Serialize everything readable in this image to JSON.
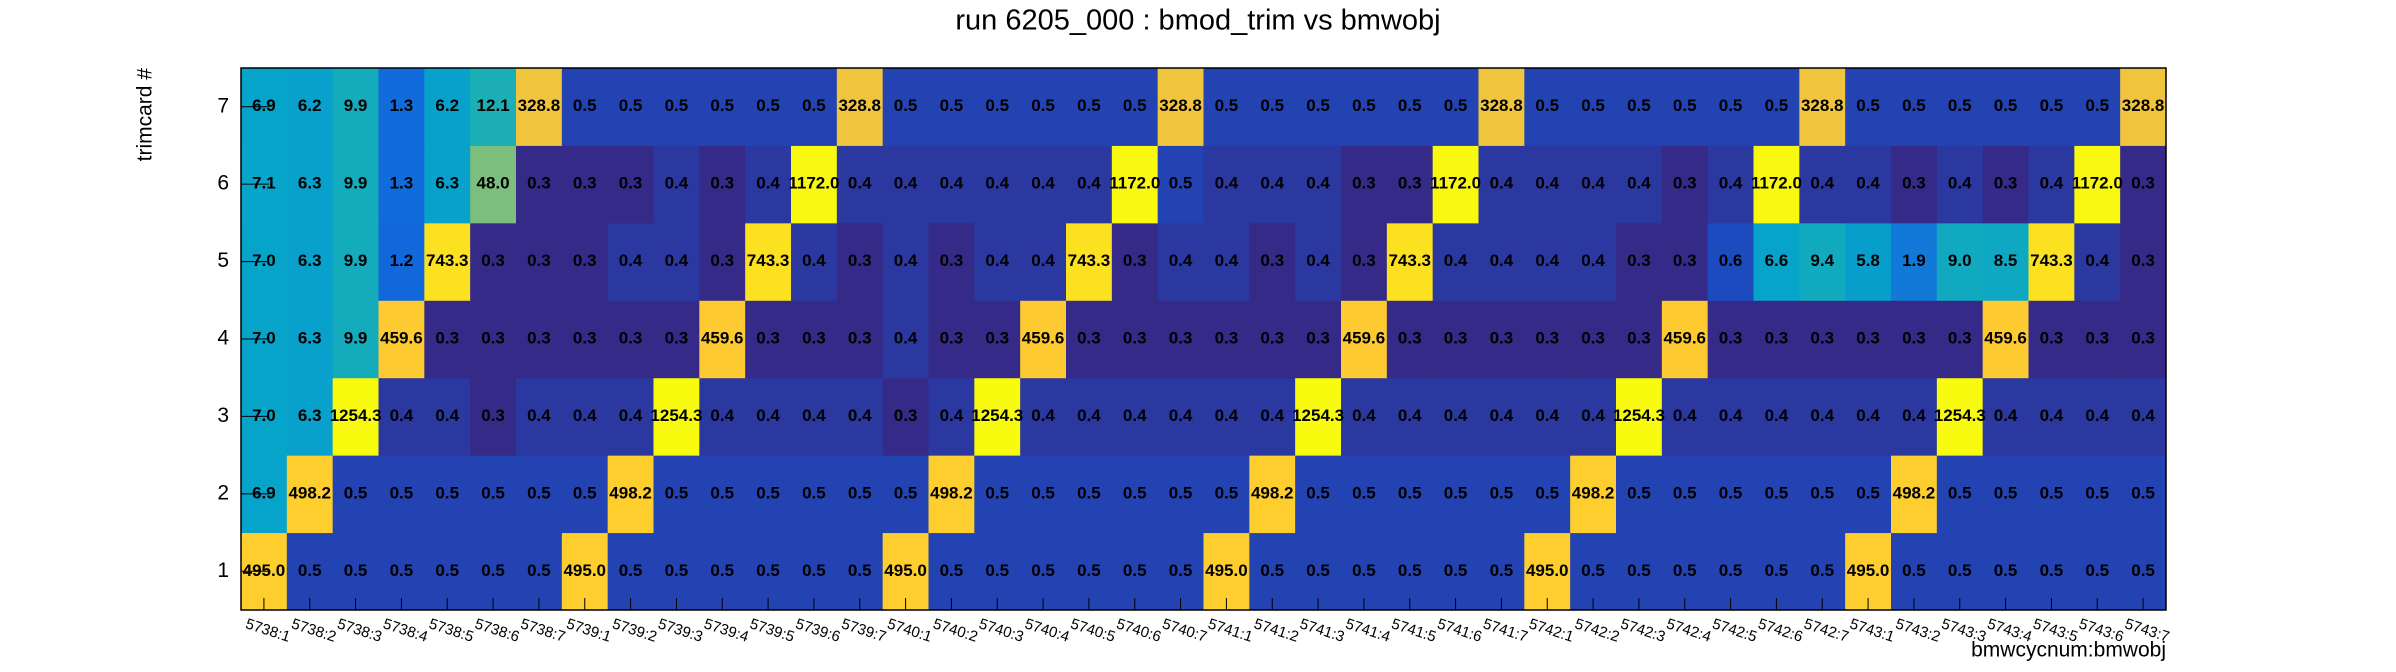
{
  "chart_data": {
    "type": "heatmap",
    "title": "run 6205_000 : bmod_trim vs bmwobj",
    "x_label": "bmwcycnum:bmwobj",
    "y_label": "trimcard #",
    "x": [
      "5738:1",
      "5738:2",
      "5738:3",
      "5738:4",
      "5738:5",
      "5738:6",
      "5738:7",
      "5739:1",
      "5739:2",
      "5739:3",
      "5739:4",
      "5739:5",
      "5739:6",
      "5739:7",
      "5740:1",
      "5740:2",
      "5740:3",
      "5740:4",
      "5740:5",
      "5740:6",
      "5740:7",
      "5741:1",
      "5741:2",
      "5741:3",
      "5741:4",
      "5741:5",
      "5741:6",
      "5741:7",
      "5742:1",
      "5742:2",
      "5742:3",
      "5742:4",
      "5742:5",
      "5742:6",
      "5742:7",
      "5743:1",
      "5743:2",
      "5743:3",
      "5743:4",
      "5743:5",
      "5743:6",
      "5743:7"
    ],
    "y": [
      1,
      2,
      3,
      4,
      5,
      6,
      7
    ],
    "log_z": true,
    "palette": [
      "#352a87",
      "#0f5cdd",
      "#1481d6",
      "#06a4ca",
      "#2eb7a4",
      "#87bf77",
      "#d1bb59",
      "#fec832",
      "#f9fb0e"
    ],
    "values": [
      [
        495.0,
        0.5,
        0.5,
        0.5,
        0.5,
        0.5,
        0.5,
        495.0,
        0.5,
        0.5,
        0.5,
        0.5,
        0.5,
        0.5,
        495.0,
        0.5,
        0.5,
        0.5,
        0.5,
        0.5,
        0.5,
        495.0,
        0.5,
        0.5,
        0.5,
        0.5,
        0.5,
        0.5,
        495.0,
        0.5,
        0.5,
        0.5,
        0.5,
        0.5,
        0.5,
        495.0,
        0.5,
        0.5,
        0.5,
        0.5,
        0.5,
        0.5
      ],
      [
        6.9,
        498.2,
        0.5,
        0.5,
        0.5,
        0.5,
        0.5,
        0.5,
        498.2,
        0.5,
        0.5,
        0.5,
        0.5,
        0.5,
        0.5,
        498.2,
        0.5,
        0.5,
        0.5,
        0.5,
        0.5,
        0.5,
        498.2,
        0.5,
        0.5,
        0.5,
        0.5,
        0.5,
        0.5,
        498.2,
        0.5,
        0.5,
        0.5,
        0.5,
        0.5,
        0.5,
        498.2,
        0.5,
        0.5,
        0.5,
        0.5,
        0.5
      ],
      [
        7.0,
        6.3,
        1254.3,
        0.4,
        0.4,
        0.3,
        0.4,
        0.4,
        0.4,
        1254.3,
        0.4,
        0.4,
        0.4,
        0.4,
        0.3,
        0.4,
        1254.3,
        0.4,
        0.4,
        0.4,
        0.4,
        0.4,
        0.4,
        1254.3,
        0.4,
        0.4,
        0.4,
        0.4,
        0.4,
        0.4,
        1254.3,
        0.4,
        0.4,
        0.4,
        0.4,
        0.4,
        0.4,
        1254.3,
        0.4,
        0.4,
        0.4,
        0.4
      ],
      [
        7.0,
        6.3,
        9.9,
        459.6,
        0.3,
        0.3,
        0.3,
        0.3,
        0.3,
        0.3,
        459.6,
        0.3,
        0.3,
        0.3,
        0.4,
        0.3,
        0.3,
        459.6,
        0.3,
        0.3,
        0.3,
        0.3,
        0.3,
        0.3,
        459.6,
        0.3,
        0.3,
        0.3,
        0.3,
        0.3,
        0.3,
        459.6,
        0.3,
        0.3,
        0.3,
        0.3,
        0.3,
        0.3,
        459.6,
        0.3,
        0.3,
        0.3
      ],
      [
        7.0,
        6.3,
        9.9,
        1.2,
        743.3,
        0.3,
        0.3,
        0.3,
        0.4,
        0.4,
        0.3,
        743.3,
        0.4,
        0.3,
        0.4,
        0.3,
        0.4,
        0.4,
        743.3,
        0.3,
        0.4,
        0.4,
        0.3,
        0.4,
        0.3,
        743.3,
        0.4,
        0.4,
        0.4,
        0.4,
        0.3,
        0.3,
        0.6,
        6.6,
        9.4,
        5.8,
        1.9,
        9.0,
        8.5,
        743.3,
        0.4,
        0.3
      ],
      [
        7.1,
        6.3,
        9.9,
        1.3,
        6.3,
        48.0,
        0.3,
        0.3,
        0.3,
        0.4,
        0.3,
        0.4,
        1172.0,
        0.4,
        0.4,
        0.4,
        0.4,
        0.4,
        0.4,
        1172.0,
        0.5,
        0.4,
        0.4,
        0.4,
        0.3,
        0.3,
        1172.0,
        0.4,
        0.4,
        0.4,
        0.4,
        0.3,
        0.4,
        1172.0,
        0.4,
        0.4,
        0.3,
        0.4,
        0.3,
        0.4,
        1172.0,
        0.3
      ],
      [
        6.9,
        6.2,
        9.9,
        1.3,
        6.2,
        12.1,
        328.8,
        0.5,
        0.5,
        0.5,
        0.5,
        0.5,
        0.5,
        328.8,
        0.5,
        0.5,
        0.5,
        0.5,
        0.5,
        0.5,
        328.8,
        0.5,
        0.5,
        0.5,
        0.5,
        0.5,
        0.5,
        328.8,
        0.5,
        0.5,
        0.5,
        0.5,
        0.5,
        0.5,
        328.8,
        0.5,
        0.5,
        0.5,
        0.5,
        0.5,
        0.5,
        328.8
      ]
    ],
    "value_labels": [
      [
        "495.0",
        "0.5",
        "0.5",
        "0.5",
        "0.5",
        "0.5",
        "0.5",
        "495.0",
        "0.5",
        "0.5",
        "0.5",
        "0.5",
        "0.5",
        "0.5",
        "495.0",
        "0.5",
        "0.5",
        "0.5",
        "0.5",
        "0.5",
        "0.5",
        "495.0",
        "0.5",
        "0.5",
        "0.5",
        "0.5",
        "0.5",
        "0.5",
        "495.0",
        "0.5",
        "0.5",
        "0.5",
        "0.5",
        "0.5",
        "0.5",
        "495.0",
        "0.5",
        "0.5",
        "0.5",
        "0.5",
        "0.5",
        "0.5"
      ],
      [
        "6.9",
        "498.2",
        "0.5",
        "0.5",
        "0.5",
        "0.5",
        "0.5",
        "0.5",
        "498.2",
        "0.5",
        "0.5",
        "0.5",
        "0.5",
        "0.5",
        "0.5",
        "498.2",
        "0.5",
        "0.5",
        "0.5",
        "0.5",
        "0.5",
        "0.5",
        "498.2",
        "0.5",
        "0.5",
        "0.5",
        "0.5",
        "0.5",
        "0.5",
        "498.2",
        "0.5",
        "0.5",
        "0.5",
        "0.5",
        "0.5",
        "0.5",
        "498.2",
        "0.5",
        "0.5",
        "0.5",
        "0.5",
        "0.5"
      ],
      [
        "7.0",
        "6.3",
        "1254.3",
        "0.4",
        "0.4",
        "0.3",
        "0.4",
        "0.4",
        "0.4",
        "1254.3",
        "0.4",
        "0.4",
        "0.4",
        "0.4",
        "0.3",
        "0.4",
        "1254.3",
        "0.4",
        "0.4",
        "0.4",
        "0.4",
        "0.4",
        "0.4",
        "1254.3",
        "0.4",
        "0.4",
        "0.4",
        "0.4",
        "0.4",
        "0.4",
        "1254.3",
        "0.4",
        "0.4",
        "0.4",
        "0.4",
        "0.4",
        "0.4",
        "1254.3",
        "0.4",
        "0.4",
        "0.4",
        "0.4"
      ],
      [
        "7.0",
        "6.3",
        "9.9",
        "459.6",
        "0.3",
        "0.3",
        "0.3",
        "0.3",
        "0.3",
        "0.3",
        "459.6",
        "0.3",
        "0.3",
        "0.3",
        "0.4",
        "0.3",
        "0.3",
        "459.6",
        "0.3",
        "0.3",
        "0.3",
        "0.3",
        "0.3",
        "0.3",
        "459.6",
        "0.3",
        "0.3",
        "0.3",
        "0.3",
        "0.3",
        "0.3",
        "459.6",
        "0.3",
        "0.3",
        "0.3",
        "0.3",
        "0.3",
        "0.3",
        "459.6",
        "0.3",
        "0.3",
        "0.3"
      ],
      [
        "7.0",
        "6.3",
        "9.9",
        "1.2",
        "743.3",
        "0.3",
        "0.3",
        "0.3",
        "0.4",
        "0.4",
        "0.3",
        "743.3",
        "0.4",
        "0.3",
        "0.4",
        "0.3",
        "0.4",
        "0.4",
        "743.3",
        "0.3",
        "0.4",
        "0.4",
        "0.3",
        "0.4",
        "0.3",
        "743.3",
        "0.4",
        "0.4",
        "0.4",
        "0.4",
        "0.3",
        "0.3",
        "0.6",
        "6.6",
        "9.4",
        "5.8",
        "1.9",
        "9.0",
        "8.5",
        "743.3",
        "0.4",
        "0.3"
      ],
      [
        "7.1",
        "6.3",
        "9.9",
        "1.3",
        "6.3",
        "48.0",
        "0.3",
        "0.3",
        "0.3",
        "0.4",
        "0.3",
        "0.4",
        "1172.0",
        "0.4",
        "0.4",
        "0.4",
        "0.4",
        "0.4",
        "0.4",
        "1172.0",
        "0.5",
        "0.4",
        "0.4",
        "0.4",
        "0.3",
        "0.3",
        "1172.0",
        "0.4",
        "0.4",
        "0.4",
        "0.4",
        "0.3",
        "0.4",
        "1172.0",
        "0.4",
        "0.4",
        "0.3",
        "0.4",
        "0.3",
        "0.4",
        "1172.0",
        "0.3"
      ],
      [
        "6.9",
        "6.2",
        "9.9",
        "1.3",
        "6.2",
        "12.1",
        "328.8",
        "0.5",
        "0.5",
        "0.5",
        "0.5",
        "0.5",
        "0.5",
        "328.8",
        "0.5",
        "0.5",
        "0.5",
        "0.5",
        "0.5",
        "0.5",
        "328.8",
        "0.5",
        "0.5",
        "0.5",
        "0.5",
        "0.5",
        "0.5",
        "328.8",
        "0.5",
        "0.5",
        "0.5",
        "0.5",
        "0.5",
        "0.5",
        "328.8",
        "0.5",
        "0.5",
        "0.5",
        "0.5",
        "0.5",
        "0.5",
        "328.8"
      ]
    ]
  }
}
